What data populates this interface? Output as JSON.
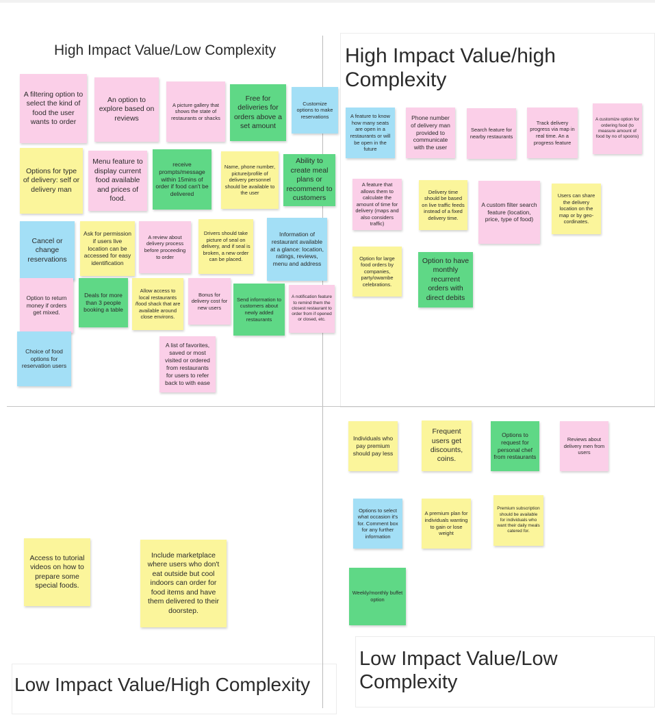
{
  "quadrants": {
    "q1_title": "High Impact Value/Low Complexity",
    "q2_title": "High Impact Value/high Complexity",
    "q3_title": "Low Impact Value/High Complexity",
    "q4_title": "Low Impact Value/Low Complexity"
  },
  "notes": [
    {
      "text": "A filtering option to select the kind of food the user wants to order",
      "color": "#fbcfe8"
    },
    {
      "text": "An option to explore based on reviews",
      "color": "#fbcfe8"
    },
    {
      "text": "A picture gallery that shows the state of restaurants or shacks",
      "color": "#fbcfe8"
    },
    {
      "text": "Free for deliveries for orders above a set amount",
      "color": "#5fd886"
    },
    {
      "text": "Customize options to make reservations",
      "color": "#a3dff6"
    },
    {
      "text": "Options for type of delivery: self or delivery man",
      "color": "#fbf59b"
    },
    {
      "text": "Menu feature to display current food available and prices of food.",
      "color": "#fbcfe8"
    },
    {
      "text": "receive prompts/message within 15mins of order if food can't be delivered",
      "color": "#5fd886"
    },
    {
      "text": "Name, phone number, picture/profile of delivery personnel should be available to the user",
      "color": "#fbf59b"
    },
    {
      "text": "Ability to create meal plans or recommend to customers",
      "color": "#5fd886"
    },
    {
      "text": "Cancel or change reservations",
      "color": "#a3dff6"
    },
    {
      "text": "Ask for permission if users live location can be accessed for easy identification",
      "color": "#fbf59b"
    },
    {
      "text": "A review about delivery process before proceeding to order",
      "color": "#fbcfe8"
    },
    {
      "text": "Drivers should take picture of seal on delivery, and if seal is broken, a new order can be placed.",
      "color": "#fbf59b"
    },
    {
      "text": "Information of restaurant available at a glance: location, ratings, reviews, menu and address",
      "color": "#a3dff6"
    },
    {
      "text": "Option to return money if orders get mixed.",
      "color": "#fbcfe8"
    },
    {
      "text": "Deals for more than 3 people booking a table",
      "color": "#5fd886"
    },
    {
      "text": "Allow access to local restaurants /food shack that are available around close environs.",
      "color": "#fbf59b"
    },
    {
      "text": "Bonus for delivery cost for new users",
      "color": "#fbcfe8"
    },
    {
      "text": "Send information to customers about newly added restaurants",
      "color": "#5fd886"
    },
    {
      "text": "A notification feature to remind them the closest restaurant to order from if opened or closed, etc.",
      "color": "#fbcfe8"
    },
    {
      "text": "Choice of food options for reservation users",
      "color": "#a3dff6"
    },
    {
      "text": "A list of favorites, saved or most visited or ordered from restaurants for users to refer back to with ease",
      "color": "#fbcfe8"
    },
    {
      "text": "A feature to know how many seats are open in a restaurants or will be open in the future",
      "color": "#a3dff6"
    },
    {
      "text": "Phone number of delivery man provided to communicate with the user",
      "color": "#fbcfe8"
    },
    {
      "text": "Search feature for nearby restaurants",
      "color": "#fbcfe8"
    },
    {
      "text": "Track delivery progress via map in real time. An a progress feature",
      "color": "#fbcfe8"
    },
    {
      "text": "A customize option for ordering food (to measure amount of food by no of spoons)",
      "color": "#fbcfe8"
    },
    {
      "text": "A feature that allows them to calculate the amount of time for delivery (maps and also considers traffic)",
      "color": "#fbcfe8"
    },
    {
      "text": "Delivery time should be based on live traffic feeds instead of a fixed delivery time.",
      "color": "#fbf59b"
    },
    {
      "text": "A custom filter search feature (location, price, type of food)",
      "color": "#fbcfe8"
    },
    {
      "text": "Users can share the delivery location on the map or by geo-cordinates.",
      "color": "#fbf59b"
    },
    {
      "text": "Option for large food orders by companies, party/owambe celebrations.",
      "color": "#fbf59b"
    },
    {
      "text": "Option to have monthly recurrent orders with direct debits",
      "color": "#5fd886"
    },
    {
      "text": "Individuals who pay premium should pay less",
      "color": "#fbf59b"
    },
    {
      "text": "Frequent users get discounts, coins.",
      "color": "#fbf59b"
    },
    {
      "text": "Options to request for personal chef from restaurants",
      "color": "#5fd886"
    },
    {
      "text": "Reviews about delivery men from users",
      "color": "#fbcfe8"
    },
    {
      "text": "Options to select what occasion it's for. Comment box for any further information",
      "color": "#a3dff6"
    },
    {
      "text": "A premium plan for individuals wanting to gain or lose weight",
      "color": "#fbf59b"
    },
    {
      "text": "Premium subscription should be available for individuals who want their daily meals catered for.",
      "color": "#fbf59b"
    },
    {
      "text": "Weekly/monthly buffet option",
      "color": "#5fd886"
    },
    {
      "text": "Access to tutorial videos on how to prepare some special foods.",
      "color": "#fbf59b"
    },
    {
      "text": "Include marketplace where users who don't eat outside but cool indoors can order for food items and have them delivered to their doorstep.",
      "color": "#fbf59b"
    }
  ]
}
